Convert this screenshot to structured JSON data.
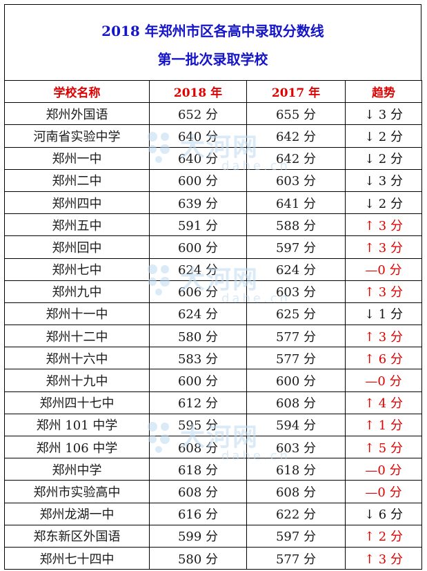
{
  "title": {
    "line1": "2018 年郑州市区各高中录取分数线",
    "line2": "第一批次录取学校"
  },
  "headers": [
    "学校名称",
    "2018 年",
    "2017 年",
    "趋势"
  ],
  "rows": [
    {
      "school": "郑州外国语",
      "y2018": "652 分",
      "y2017": "655 分",
      "trend": "↓ 3 分",
      "dir": "down"
    },
    {
      "school": "河南省实验中学",
      "y2018": "640 分",
      "y2017": "642 分",
      "trend": "↓ 2 分",
      "dir": "down"
    },
    {
      "school": "郑州一中",
      "y2018": "640 分",
      "y2017": "642 分",
      "trend": "↓ 2 分",
      "dir": "down"
    },
    {
      "school": "郑州二中",
      "y2018": "600 分",
      "y2017": "603 分",
      "trend": "↓ 3 分",
      "dir": "down"
    },
    {
      "school": "郑州四中",
      "y2018": "639 分",
      "y2017": "641 分",
      "trend": "↓ 2 分",
      "dir": "down"
    },
    {
      "school": "郑州五中",
      "y2018": "591 分",
      "y2017": "588 分",
      "trend": "↑ 3 分",
      "dir": "up"
    },
    {
      "school": "郑州回中",
      "y2018": "600 分",
      "y2017": "597 分",
      "trend": "↑ 3 分",
      "dir": "up"
    },
    {
      "school": "郑州七中",
      "y2018": "624 分",
      "y2017": "624 分",
      "trend": "—0 分",
      "dir": "flat"
    },
    {
      "school": "郑州九中",
      "y2018": "606 分",
      "y2017": "603 分",
      "trend": "↑ 3 分",
      "dir": "up"
    },
    {
      "school": "郑州十一中",
      "y2018": "624 分",
      "y2017": "625 分",
      "trend": "↓ 1 分",
      "dir": "down"
    },
    {
      "school": "郑州十二中",
      "y2018": "580 分",
      "y2017": "577 分",
      "trend": "↑ 3 分",
      "dir": "up"
    },
    {
      "school": "郑州十六中",
      "y2018": "583 分",
      "y2017": "577 分",
      "trend": "↑ 6 分",
      "dir": "up"
    },
    {
      "school": "郑州十九中",
      "y2018": "600 分",
      "y2017": "600 分",
      "trend": "—0 分",
      "dir": "flat"
    },
    {
      "school": "郑州四十七中",
      "y2018": "612 分",
      "y2017": "608 分",
      "trend": "↑ 4 分",
      "dir": "up"
    },
    {
      "school": "郑州 101 中学",
      "y2018": "595 分",
      "y2017": "594 分",
      "trend": "↑ 1 分",
      "dir": "up"
    },
    {
      "school": "郑州 106 中学",
      "y2018": "608 分",
      "y2017": "603 分",
      "trend": "↑ 5 分",
      "dir": "up"
    },
    {
      "school": "郑州中学",
      "y2018": "618 分",
      "y2017": "618 分",
      "trend": "—0 分",
      "dir": "flat"
    },
    {
      "school": "郑州市实验高中",
      "y2018": "608 分",
      "y2017": "608 分",
      "trend": "—0 分",
      "dir": "flat"
    },
    {
      "school": "郑州龙湖一中",
      "y2018": "616 分",
      "y2017": "622 分",
      "trend": "↓ 6 分",
      "dir": "down"
    },
    {
      "school": "郑东新区外国语",
      "y2018": "599 分",
      "y2017": "597 分",
      "trend": "↑ 2 分",
      "dir": "up"
    },
    {
      "school": "郑州七十四中",
      "y2018": "580 分",
      "y2017": "577 分",
      "trend": "↑ 3 分",
      "dir": "up"
    }
  ],
  "watermark": {
    "text": "大河网",
    "sub": "dahe.cn",
    "color": "#bcd9ef"
  }
}
